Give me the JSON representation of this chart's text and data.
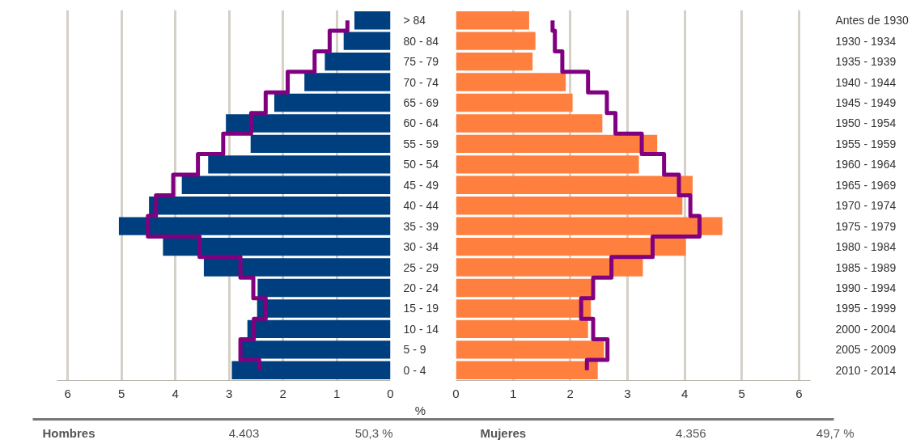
{
  "chart_data": [
    {
      "type": "bar",
      "orientation": "horizontal",
      "categories": [
        "> 84",
        "80 - 84",
        "75 - 79",
        "70 - 74",
        "65 - 69",
        "60 - 64",
        "55 - 59",
        "50 - 54",
        "45 - 49",
        "40 - 44",
        "35 - 39",
        "30 - 34",
        "25 - 29",
        "20 - 24",
        "15 - 19",
        "10 - 14",
        "5 - 9",
        "0 - 4"
      ],
      "series": [
        {
          "color": "#003f7f",
          "values": [
            0.67,
            0.87,
            1.22,
            1.6,
            2.16,
            3.06,
            2.6,
            3.39,
            3.88,
            4.49,
            5.05,
            4.23,
            3.47,
            2.47,
            2.48,
            2.66,
            2.77,
            2.95
          ]
        },
        {
          "type": "step",
          "color": "#800080",
          "values": [
            0.8,
            1.13,
            1.41,
            1.91,
            2.32,
            2.59,
            3.11,
            3.58,
            4.04,
            4.36,
            4.51,
            3.55,
            2.79,
            2.55,
            2.32,
            2.54,
            2.79,
            2.44
          ]
        }
      ],
      "xlim": [
        6.2,
        0
      ],
      "xticks": [
        0,
        1,
        2,
        3,
        4,
        5,
        6
      ],
      "grid": "x",
      "xlabel": "%",
      "annotations": [
        "Hombres",
        "4.403",
        "50,3 %"
      ]
    },
    {
      "type": "bar",
      "orientation": "horizontal",
      "categories": [
        "Antes de 1930",
        "1930 - 1934",
        "1935 - 1939",
        "1940 - 1944",
        "1945 - 1949",
        "1950 - 1954",
        "1955 - 1959",
        "1960 - 1964",
        "1965 - 1969",
        "1970 - 1974",
        "1975 - 1979",
        "1980 - 1984",
        "1985 - 1989",
        "1990 - 1994",
        "1995 - 1999",
        "2000 - 2004",
        "2005 - 2009",
        "2010 - 2014"
      ],
      "series": [
        {
          "color": "#ff7f3f",
          "values": [
            1.28,
            1.39,
            1.34,
            1.92,
            2.04,
            2.56,
            3.52,
            3.2,
            4.14,
            3.96,
            4.66,
            4.02,
            3.27,
            2.37,
            2.36,
            2.31,
            2.59,
            2.48
          ]
        },
        {
          "type": "step",
          "color": "#800080",
          "values": [
            1.69,
            1.73,
            1.86,
            2.31,
            2.64,
            2.79,
            3.25,
            3.64,
            3.9,
            4.1,
            4.26,
            3.44,
            2.72,
            2.4,
            2.19,
            2.4,
            2.65,
            2.29
          ]
        }
      ],
      "xlim": [
        0,
        6.2
      ],
      "xticks": [
        0,
        1,
        2,
        3,
        4,
        5,
        6
      ],
      "grid": "x",
      "annotations": [
        "Mujeres",
        "4.356",
        "49,7 %"
      ]
    }
  ]
}
